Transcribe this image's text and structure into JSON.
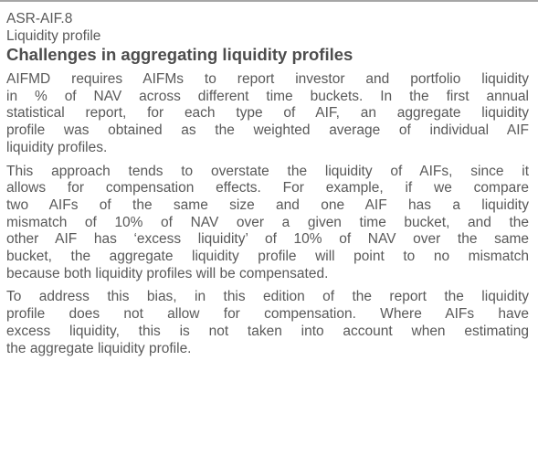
{
  "header": {
    "code": "ASR-AIF.8",
    "section": "Liquidity profile",
    "title": "Challenges in aggregating liquidity profiles"
  },
  "paragraphs": [
    [
      "AIFMD requires AIFMs to report investor and portfolio liquidity",
      "in % of NAV across different time buckets. In the first annual",
      "statistical report, for each type of AIF, an aggregate liquidity",
      "profile was obtained as the weighted average of individual AIF",
      "liquidity profiles."
    ],
    [
      "This approach tends to overstate the liquidity of AIFs, since it",
      "allows for compensation effects. For example, if we compare",
      "two AIFs of the same size and one AIF has a liquidity",
      "mismatch of 10% of NAV over a given time bucket, and the",
      "other AIF has ‘excess liquidity’ of 10% of NAV over the same",
      "bucket, the aggregate liquidity profile will point to no mismatch",
      "because both liquidity profiles will be compensated."
    ],
    [
      "To address this bias, in this edition of the report the liquidity",
      "profile does not allow for compensation. Where AIFs have",
      "excess liquidity, this is not taken into account when estimating",
      "the aggregate liquidity profile."
    ]
  ]
}
